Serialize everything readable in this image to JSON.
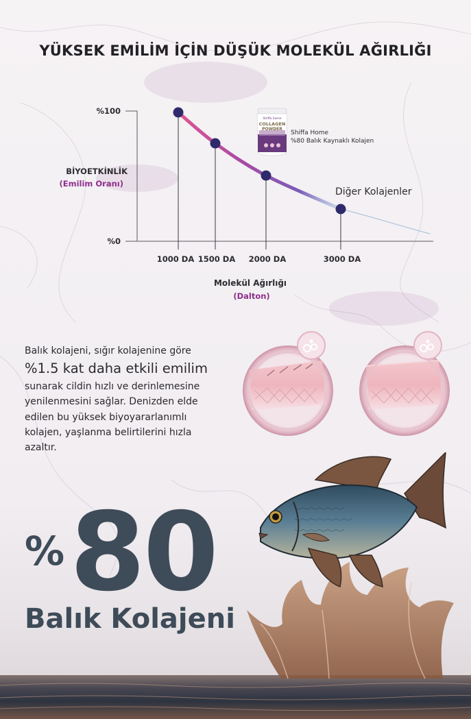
{
  "page": {
    "title": "YÜKSEK EMİLİM İÇİN DÜŞÜK MOLEKÜL AĞIRLIĞI"
  },
  "chart_data": {
    "type": "line",
    "title": "",
    "ylabel": "BİYOETKİNLİK",
    "ylabel_sub": "(Emilim Oranı)",
    "xlabel": "Molekül Ağırlığı",
    "xlabel_sub": "(Dalton)",
    "y_tick_labels": [
      "%100",
      "%0"
    ],
    "x_tick_labels": [
      "1000 DA",
      "1500 DA",
      "2000 DA",
      "3000 DA"
    ],
    "x": [
      1000,
      1500,
      2000,
      3000
    ],
    "series": [
      {
        "values": [
          100,
          76,
          51,
          25
        ]
      }
    ],
    "annotations": {
      "product_line1": "Shiffa Home",
      "product_line2": "%80 Balık Kaynaklı Kolajen",
      "other_label": "Diğer Kolajenler"
    },
    "ylim": [
      0,
      100
    ],
    "colors": {
      "curve_start": "#e0558f",
      "curve_mid": "#9c48a8",
      "curve_end": "#6f90c6",
      "point": "#2f2a6b"
    }
  },
  "product_jar": {
    "brand": "Shiffa home",
    "line1": "COLLAGEN",
    "line2": "POWDER"
  },
  "text_block": {
    "line1": "Balık kolajeni, sığır kolajenine göre",
    "highlight": "%1.5 kat daha etkili emilim",
    "line3": "sunarak cildin hızlı ve derinlemesine",
    "line4": "yenilenmesini sağlar. Denizden elde",
    "line5": "edilen bu yüksek biyoyararlanımlı",
    "line6": "kolajen, yaşlanma belirtilerini hızla",
    "line7": "azaltır."
  },
  "hero": {
    "percent": "%",
    "number": "80",
    "subtitle": "Balık Kolajeni"
  }
}
